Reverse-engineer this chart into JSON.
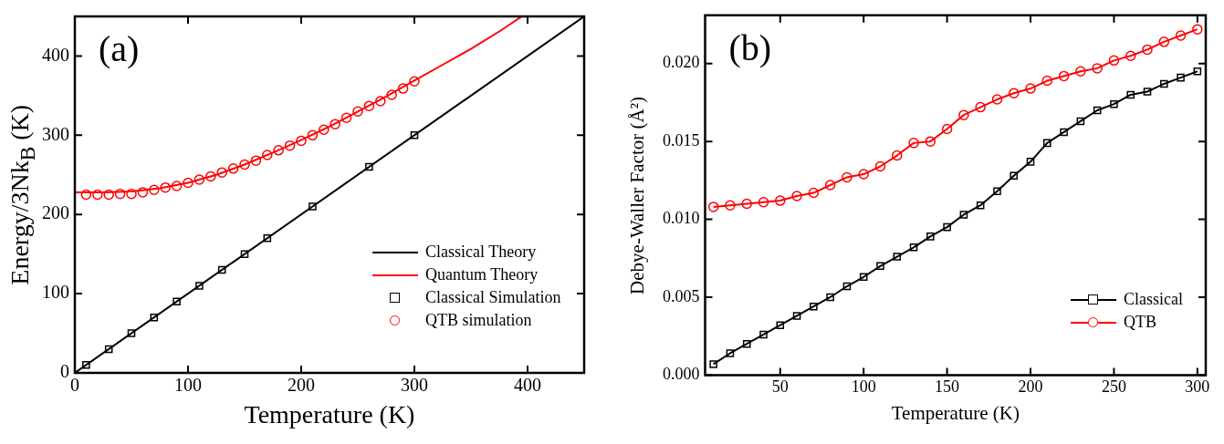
{
  "chart_data": [
    {
      "type": "line",
      "xlabel": "Temperature (K)",
      "ylabel": "Energy/3Nk$_{B}$ (K)",
      "annotations": [
        "(a)"
      ],
      "xlim": [
        0,
        450
      ],
      "ylim": [
        0,
        450
      ],
      "xticks": [
        0,
        100,
        200,
        300,
        400
      ],
      "yticks": [
        0,
        100,
        200,
        300,
        400
      ],
      "legend": "bottom right",
      "grid": false,
      "series": [
        {
          "name": "Classical Theory",
          "marker": "none",
          "color": "#000000",
          "x": [
            0,
            450
          ],
          "values": [
            0,
            450
          ]
        },
        {
          "name": "Quantum Theory",
          "marker": "none",
          "color": "#ff0000",
          "x": [
            0,
            25,
            50,
            75,
            100,
            125,
            150,
            175,
            200,
            225,
            250,
            275,
            300,
            325,
            350,
            375,
            395
          ],
          "values": [
            228,
            228,
            229,
            233,
            240,
            250,
            263,
            278,
            294,
            311,
            330,
            349,
            369,
            389,
            409,
            431,
            450
          ]
        },
        {
          "name": "Classical Simulation",
          "type": "scatter",
          "marker": "square",
          "color": "#000000",
          "x": [
            10,
            30,
            50,
            70,
            90,
            110,
            130,
            150,
            170,
            210,
            260,
            300
          ],
          "values": [
            10,
            30,
            50,
            70,
            90,
            110,
            130,
            150,
            170,
            210,
            260,
            300
          ]
        },
        {
          "name": "QTB simulation",
          "type": "scatter",
          "marker": "circle",
          "color": "#ff0000",
          "x": [
            10,
            20,
            30,
            40,
            50,
            60,
            70,
            80,
            90,
            100,
            110,
            120,
            130,
            140,
            150,
            160,
            170,
            180,
            190,
            200,
            210,
            220,
            230,
            240,
            250,
            260,
            270,
            280,
            290,
            300
          ],
          "values": [
            225,
            225,
            225,
            226,
            226,
            228,
            231,
            234,
            236,
            240,
            244,
            248,
            253,
            258,
            263,
            268,
            275,
            281,
            287,
            293,
            300,
            307,
            314,
            322,
            330,
            337,
            343,
            351,
            359,
            368
          ]
        }
      ]
    },
    {
      "type": "line",
      "xlabel": "Temperature (K)",
      "ylabel": "Debye-Waller Factor (Å²)",
      "annotations": [
        "(b)"
      ],
      "xlim": [
        5,
        305
      ],
      "ylim": [
        0,
        0.0231
      ],
      "xticks": [
        50,
        100,
        150,
        200,
        250,
        300
      ],
      "yticks": [
        {
          "value": 0,
          "label": "0.000"
        },
        {
          "value": 0.005,
          "label": "0.005"
        },
        {
          "value": 0.01,
          "label": "0.010"
        },
        {
          "value": 0.015,
          "label": "0.015"
        },
        {
          "value": 0.02,
          "label": "0.020"
        }
      ],
      "legend": "bottom right",
      "grid": false,
      "series": [
        {
          "name": "Classical",
          "marker": "square",
          "color": "#000000",
          "x": [
            10,
            20,
            30,
            40,
            50,
            60,
            70,
            80,
            90,
            100,
            110,
            120,
            130,
            140,
            150,
            160,
            170,
            180,
            190,
            200,
            210,
            220,
            230,
            240,
            250,
            260,
            270,
            280,
            290,
            300
          ],
          "values": [
            0.0007,
            0.0014,
            0.002,
            0.0026,
            0.0032,
            0.0038,
            0.0044,
            0.005,
            0.0057,
            0.0063,
            0.007,
            0.0076,
            0.0082,
            0.0089,
            0.0095,
            0.0103,
            0.0109,
            0.0118,
            0.0128,
            0.0137,
            0.0149,
            0.0156,
            0.0163,
            0.017,
            0.0174,
            0.018,
            0.0182,
            0.0187,
            0.0191,
            0.0195
          ]
        },
        {
          "name": "QTB",
          "marker": "circle",
          "color": "#ff0000",
          "x": [
            10,
            20,
            30,
            40,
            50,
            60,
            70,
            80,
            90,
            100,
            110,
            120,
            130,
            140,
            150,
            160,
            170,
            180,
            190,
            200,
            210,
            220,
            230,
            240,
            250,
            260,
            270,
            280,
            290,
            300
          ],
          "values": [
            0.0108,
            0.0109,
            0.011,
            0.0111,
            0.0112,
            0.0115,
            0.0117,
            0.0122,
            0.0127,
            0.0129,
            0.0134,
            0.0141,
            0.0149,
            0.015,
            0.0158,
            0.0167,
            0.0172,
            0.0177,
            0.0181,
            0.0184,
            0.0189,
            0.0192,
            0.0195,
            0.0197,
            0.0202,
            0.0205,
            0.0209,
            0.0214,
            0.0218,
            0.0222
          ]
        }
      ]
    }
  ]
}
